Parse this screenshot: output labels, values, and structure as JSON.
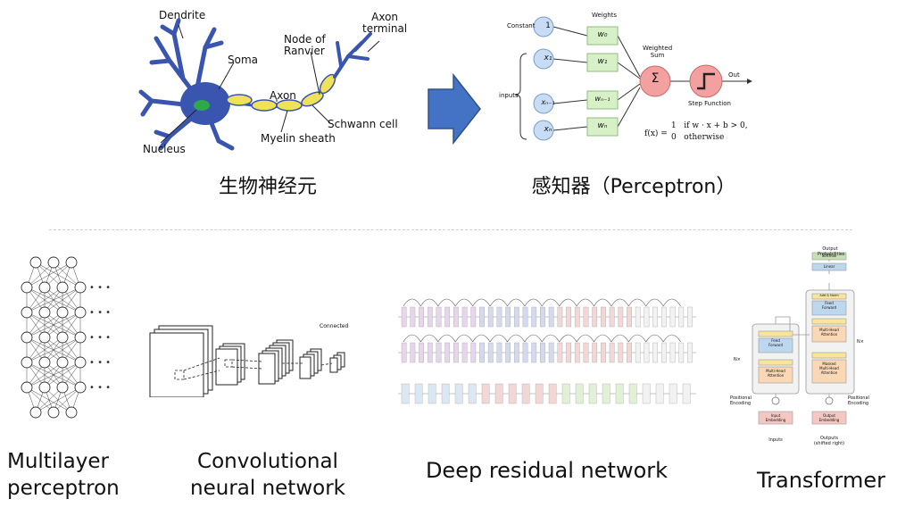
{
  "neuron": {
    "labels": {
      "dendrite": "Dendrite",
      "soma": "Soma",
      "nucleus": "Nucleus",
      "node_of_ranvier": "Node of\nRanvier",
      "axon": "Axon",
      "axon_terminal": "Axon\nterminal",
      "myelin_sheath": "Myelin sheath",
      "schwann_cell": "Schwann cell"
    },
    "caption": "生物神经元"
  },
  "perceptron": {
    "labels": {
      "constant": "Constant",
      "weights": "Weights",
      "inputs": "inputs",
      "weighted_sum": "Weighted\nSum",
      "step_function": "Step Function",
      "out": "Out",
      "const_node": "1",
      "x1": "x₁",
      "xn1": "xₙ₋₁",
      "xn": "xₙ",
      "w0": "w₀",
      "w1": "w₁",
      "wn1": "wₙ₋₁",
      "wn": "wₙ",
      "sum_symbol": "Σ",
      "formula_lhs": "f(x) =",
      "formula_case1": "1   if w · x + b > 0,",
      "formula_case2": "0   otherwise"
    },
    "caption": "感知器（Perceptron）"
  },
  "colors": {
    "neuron_blue": "#3a55b0",
    "myelin_yellow": "#efe25a",
    "nucleus_green": "#2fa84a",
    "arrow_blue": "#4472c4",
    "node_blue": "#c9dcf5",
    "weight_green": "#d8f0c8",
    "sum_red": "#f2a0a0"
  },
  "bottom": {
    "mlp_caption_line1": "Multilayer",
    "mlp_caption_line2": "perceptron",
    "cnn_caption_line1": "Convolutional",
    "cnn_caption_line2": "neural network",
    "cnn_connected_label": "Connected",
    "resnet_caption": "Deep residual network",
    "transformer_caption": "Transformer",
    "transformer_labels": {
      "output_probs": "Output\nProbabilities",
      "softmax": "Softmax",
      "linear": "Linear",
      "add_norm": "Add & Norm",
      "feed_forward": "Feed\nForward",
      "multi_head": "Multi-Head\nAttention",
      "masked_multi_head": "Masked\nMulti-Head\nAttention",
      "nx_left": "N×",
      "nx_right": "N×",
      "pos_enc_left": "Positional\nEncoding",
      "pos_enc_right": "Positional\nEncoding",
      "input_embedding": "Input\nEmbedding",
      "output_embedding": "Output\nEmbedding",
      "inputs": "Inputs",
      "outputs": "Outputs\n(shifted right)"
    }
  }
}
